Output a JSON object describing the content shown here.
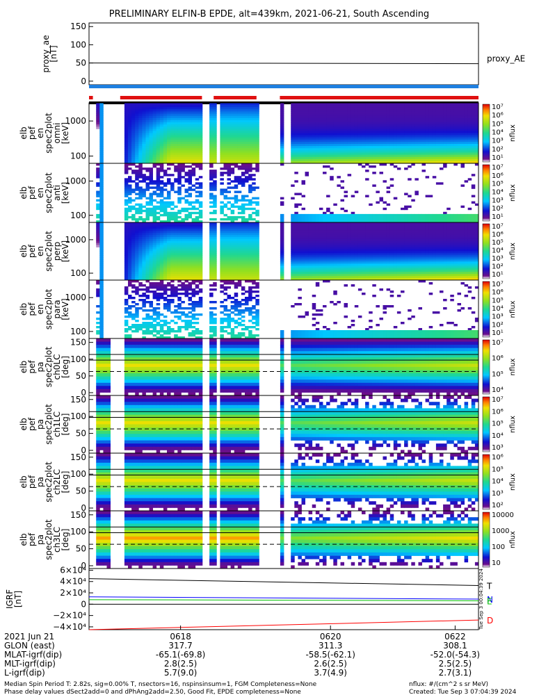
{
  "title": "PRELIMINARY ELFIN-B EPDE, alt=439km, 2021-06-21, South Ascending",
  "colors": {
    "bar_red": "#e01010",
    "bar_blue": "#1e7fe0",
    "T": "#000000",
    "N": "#0000ff",
    "E": "#00c000",
    "D": "#ff0000"
  },
  "chart_data": [
    {
      "type": "line",
      "name": "proxy_ae",
      "ylabel_lines": [
        "proxy_ae",
        "[nT]"
      ],
      "yticks": [
        "150",
        "100",
        "50",
        "0"
      ],
      "ylim": [
        -10,
        160
      ],
      "legend": "proxy_AE",
      "value": 50
    },
    {
      "type": "heatmap",
      "name": "omni",
      "ylabel_lines": [
        "elb",
        "pef",
        "en",
        "spec2plot",
        "omni",
        "[keV]"
      ],
      "yticks": [
        "1000",
        "100"
      ],
      "cbar_label": "nflux",
      "cbar_ticks": [
        "10⁷",
        "10⁶",
        "10⁵",
        "10⁴",
        "10³",
        "10²",
        "10¹"
      ]
    },
    {
      "type": "heatmap",
      "name": "anti",
      "ylabel_lines": [
        "elb",
        "pef",
        "en",
        "spec2plot",
        "anti",
        "[keV]"
      ],
      "yticks": [
        "1000",
        "100"
      ],
      "cbar_label": "nflux",
      "cbar_ticks": [
        "10⁷",
        "10⁶",
        "10⁵",
        "10⁴",
        "10³",
        "10²",
        "10¹"
      ]
    },
    {
      "type": "heatmap",
      "name": "perp",
      "ylabel_lines": [
        "elb",
        "pef",
        "en",
        "spec2plot",
        "perp",
        "[keV]"
      ],
      "yticks": [
        "1000",
        "100"
      ],
      "cbar_label": "nflux",
      "cbar_ticks": [
        "10⁷",
        "10⁶",
        "10⁵",
        "10⁴",
        "10³",
        "10²",
        "10¹"
      ]
    },
    {
      "type": "heatmap",
      "name": "para",
      "ylabel_lines": [
        "elb",
        "pef",
        "en",
        "spec2plot",
        "para",
        "[keV]"
      ],
      "yticks": [
        "1000",
        "100"
      ],
      "cbar_label": "nflux",
      "cbar_ticks": [
        "10⁷",
        "10⁶",
        "10⁵",
        "10⁴",
        "10³",
        "10²",
        "10¹"
      ]
    },
    {
      "type": "heatmap",
      "name": "ch0LC",
      "ylabel_lines": [
        "elb",
        "pef",
        "pa",
        "spec2plot",
        "ch0LC",
        "[deg]"
      ],
      "yticks": [
        "150",
        "100",
        "50",
        "0"
      ],
      "cbar_label": "nflux",
      "cbar_ticks": [
        "10⁷",
        "10⁶",
        "10⁵",
        "10⁴"
      ]
    },
    {
      "type": "heatmap",
      "name": "ch1LC",
      "ylabel_lines": [
        "elb",
        "pef",
        "pa",
        "spec2plot",
        "ch1LC",
        "[deg]"
      ],
      "yticks": [
        "150",
        "100",
        "50",
        "0"
      ],
      "cbar_label": "nflux",
      "cbar_ticks": [
        "10⁷",
        "10⁶",
        "10⁵",
        "10⁴",
        "10³"
      ]
    },
    {
      "type": "heatmap",
      "name": "ch2LC",
      "ylabel_lines": [
        "elb",
        "pef",
        "pa",
        "spec2plot",
        "ch2LC",
        "[deg]"
      ],
      "yticks": [
        "150",
        "100",
        "50",
        "0"
      ],
      "cbar_label": "nflux",
      "cbar_ticks": [
        "10⁶",
        "10⁵",
        "10⁴",
        "10³",
        "10²"
      ]
    },
    {
      "type": "heatmap",
      "name": "ch3LC",
      "ylabel_lines": [
        "elb",
        "pef",
        "pa",
        "spec2plot",
        "ch3LC",
        "[deg]"
      ],
      "yticks": [
        "150",
        "100",
        "50",
        "0"
      ],
      "cbar_label": "nflux",
      "cbar_ticks": [
        "10000",
        "1000",
        "100",
        "10"
      ]
    },
    {
      "type": "line",
      "name": "IGRF",
      "ylabel_lines": [
        "IGRF",
        "[nT]"
      ],
      "yticks": [
        "6×10⁴",
        "4×10⁴",
        "2×10⁴",
        "0",
        "−2×10⁴",
        "−4×10⁴"
      ],
      "ylim": [
        -45000,
        63000
      ],
      "x": [
        0,
        1
      ],
      "series": [
        {
          "name": "T",
          "color": "#000000",
          "values": [
            45000,
            33000
          ]
        },
        {
          "name": "N",
          "color": "#0000ff",
          "values": [
            13000,
            9000
          ]
        },
        {
          "name": "E",
          "color": "#00c000",
          "values": [
            8000,
            6000
          ]
        },
        {
          "name": "D",
          "color": "#ff0000",
          "values": [
            -45000,
            -28000
          ]
        }
      ],
      "side_label": "Tue Sep  3 00:04:39 2024"
    }
  ],
  "ephemeris": {
    "date": "2021 Jun 21",
    "rows": [
      {
        "label": "GLON (east)",
        "values": [
          "317.7",
          "311.3",
          "308.1"
        ]
      },
      {
        "label": "MLAT-igrf(dip)",
        "values": [
          "-65.1(-69.8)",
          "-58.5(-62.1)",
          "-52.0(-54.3)"
        ]
      },
      {
        "label": "MLT-igrf(dip)",
        "values": [
          "2.8(2.5)",
          "2.6(2.5)",
          "2.5(2.5)"
        ]
      },
      {
        "label": "L-igrf(dip)",
        "values": [
          "5.7(9.0)",
          "3.7(4.9)",
          "2.7(3.1)"
        ]
      }
    ],
    "times": [
      "0618",
      "0620",
      "0622"
    ]
  },
  "footer": {
    "line1": "Median Spin Period T: 2.82s, sig=0.00% T, nsectors=16, nspinsinsum=1, FGM Completeness=None",
    "line2": "Phase delay values dSect2add=0 and dPhAng2add=2.50, Good Fit, EPDE completeness=None",
    "units": "nflux: #/(cm^2 s sr MeV)",
    "created": "Created: Tue Sep  3 07:04:39 2024"
  }
}
